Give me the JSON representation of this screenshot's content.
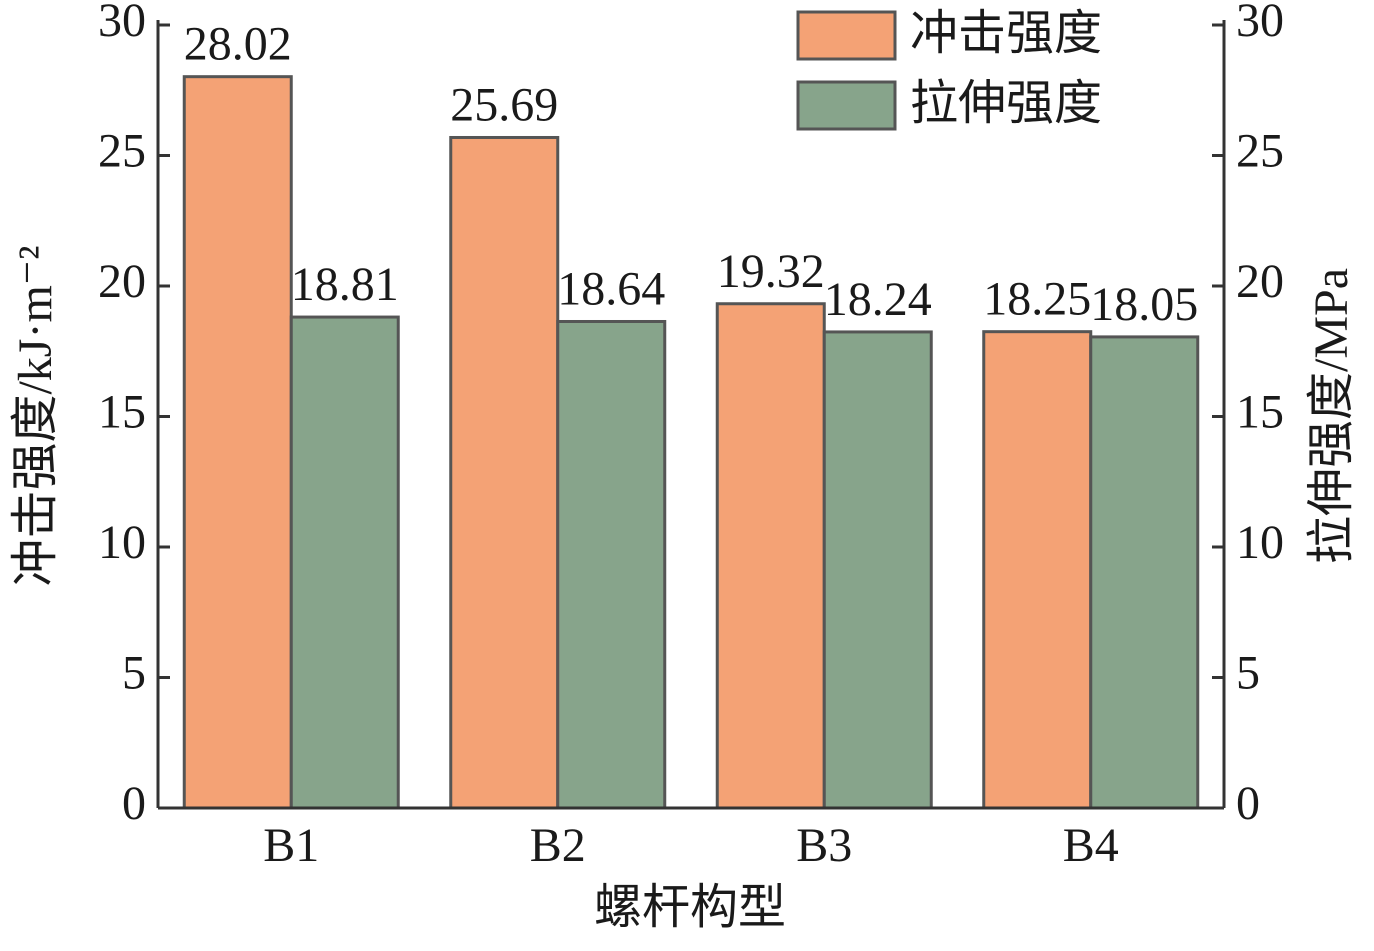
{
  "chart_data": {
    "type": "bar",
    "categories": [
      "B1",
      "B2",
      "B3",
      "B4"
    ],
    "xlabel": "螺杆构型",
    "ylabel": "冲击强度/kJ·m⁻²",
    "y2label": "拉伸强度/MPa",
    "ylim": [
      0,
      30
    ],
    "yticks": [
      0,
      5,
      10,
      15,
      20,
      25,
      30
    ],
    "y2lim": [
      0,
      30
    ],
    "y2ticks": [
      0,
      5,
      10,
      15,
      20,
      25,
      30
    ],
    "legend": "upper right",
    "series": [
      {
        "name": "冲击强度",
        "color": "#f4a275",
        "values": [
          28.02,
          25.69,
          19.32,
          18.25
        ]
      },
      {
        "name": "拉伸强度",
        "color": "#87a48b",
        "values": [
          18.81,
          18.64,
          18.24,
          18.05
        ],
        "axis": "y2"
      }
    ]
  }
}
